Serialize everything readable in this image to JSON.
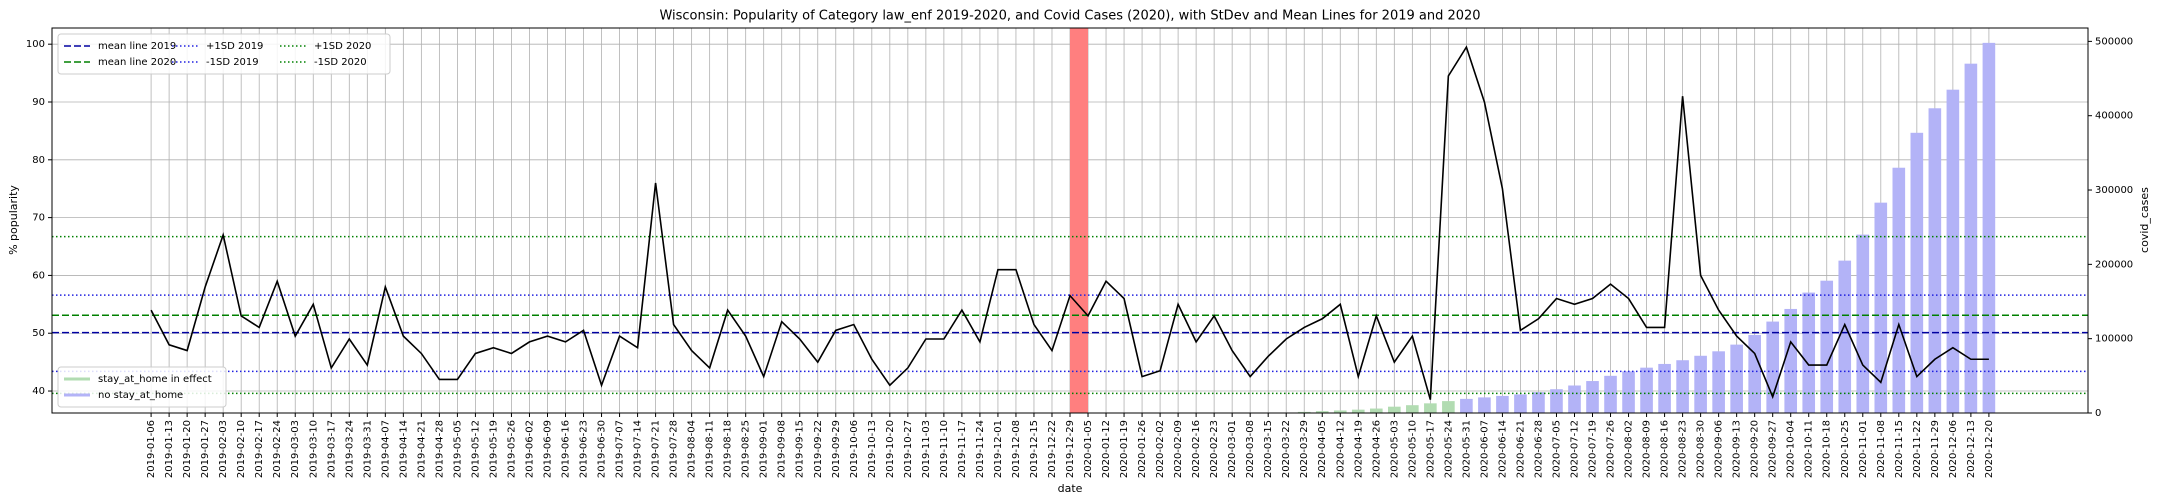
{
  "chart_data": {
    "type": "line_bar",
    "title": "Wisconsin: Popularity of Category law_enf 2019-2020, and Covid Cases (2020), with StDev and Mean Lines for 2019 and 2020",
    "xlabel": "date",
    "ylabel": "% popularity",
    "y2label": "covid_cases",
    "categories": [
      "2019-01-06",
      "2019-01-13",
      "2019-01-20",
      "2019-01-27",
      "2019-02-03",
      "2019-02-10",
      "2019-02-17",
      "2019-02-24",
      "2019-03-03",
      "2019-03-10",
      "2019-03-17",
      "2019-03-24",
      "2019-03-31",
      "2019-04-07",
      "2019-04-14",
      "2019-04-21",
      "2019-04-28",
      "2019-05-05",
      "2019-05-12",
      "2019-05-19",
      "2019-05-26",
      "2019-06-02",
      "2019-06-09",
      "2019-06-16",
      "2019-06-23",
      "2019-06-30",
      "2019-07-07",
      "2019-07-14",
      "2019-07-21",
      "2019-07-28",
      "2019-08-04",
      "2019-08-11",
      "2019-08-18",
      "2019-08-25",
      "2019-09-01",
      "2019-09-08",
      "2019-09-15",
      "2019-09-22",
      "2019-09-29",
      "2019-10-06",
      "2019-10-13",
      "2019-10-20",
      "2019-10-27",
      "2019-11-03",
      "2019-11-10",
      "2019-11-17",
      "2019-11-24",
      "2019-12-01",
      "2019-12-08",
      "2019-12-15",
      "2019-12-22",
      "2019-12-29",
      "2020-01-05",
      "2020-01-12",
      "2020-01-19",
      "2020-01-26",
      "2020-02-02",
      "2020-02-09",
      "2020-02-16",
      "2020-02-23",
      "2020-03-01",
      "2020-03-08",
      "2020-03-15",
      "2020-03-22",
      "2020-03-29",
      "2020-04-05",
      "2020-04-12",
      "2020-04-19",
      "2020-04-26",
      "2020-05-03",
      "2020-05-10",
      "2020-05-17",
      "2020-05-24",
      "2020-05-31",
      "2020-06-07",
      "2020-06-14",
      "2020-06-21",
      "2020-06-28",
      "2020-07-05",
      "2020-07-12",
      "2020-07-19",
      "2020-07-26",
      "2020-08-02",
      "2020-08-09",
      "2020-08-16",
      "2020-08-23",
      "2020-08-30",
      "2020-09-06",
      "2020-09-13",
      "2020-09-20",
      "2020-09-27",
      "2020-10-04",
      "2020-10-11",
      "2020-10-18",
      "2020-10-25",
      "2020-11-01",
      "2020-11-08",
      "2020-11-15",
      "2020-11-22",
      "2020-11-29",
      "2020-12-06",
      "2020-12-13",
      "2020-12-20"
    ],
    "series": [
      {
        "name": "popularity",
        "kind": "line",
        "color": "#000000",
        "values": [
          54,
          48,
          47,
          58,
          67,
          53,
          51,
          59,
          49.5,
          55,
          44,
          49,
          44.5,
          58,
          49.5,
          46.5,
          42,
          42,
          46.5,
          47.5,
          46.5,
          48.5,
          49.5,
          48.5,
          50.5,
          41,
          49.5,
          47.5,
          76,
          51.5,
          47,
          44,
          54,
          49.5,
          42.5,
          52,
          49,
          45,
          50.5,
          51.5,
          45.5,
          41,
          44,
          49,
          49,
          54,
          48.5,
          61,
          61,
          51.5,
          47,
          56.5,
          53,
          59,
          56,
          42.5,
          43.5,
          55,
          48.5,
          53,
          47,
          42.5,
          46,
          49,
          51,
          52.5,
          55,
          42.5,
          53,
          45,
          49.5,
          38.5,
          94.5,
          99.5,
          90,
          75,
          50.5,
          52.5,
          56,
          55,
          56,
          58.5,
          56,
          51,
          51,
          91,
          60,
          54,
          49.5,
          46.5,
          39,
          48.5,
          44.5,
          44.5,
          51.5,
          44.5,
          41.5,
          51.5,
          42.5,
          45.5,
          47.5,
          45.5,
          45.5
        ]
      },
      {
        "name": "stay_at_home in effect",
        "kind": "bar",
        "axis": "y2",
        "color": "#b2dcb2",
        "values": [
          null,
          null,
          null,
          null,
          null,
          null,
          null,
          null,
          null,
          null,
          null,
          null,
          null,
          null,
          null,
          null,
          null,
          null,
          null,
          null,
          null,
          null,
          null,
          null,
          null,
          null,
          null,
          null,
          null,
          null,
          null,
          null,
          null,
          null,
          null,
          null,
          null,
          null,
          null,
          null,
          null,
          null,
          null,
          null,
          null,
          null,
          null,
          null,
          null,
          null,
          null,
          null,
          null,
          null,
          null,
          null,
          null,
          null,
          null,
          null,
          null,
          null,
          null,
          null,
          1500,
          2500,
          3400,
          4500,
          6000,
          8500,
          10500,
          13000,
          16000,
          null,
          null,
          null,
          null,
          null,
          null,
          null,
          null,
          null,
          null,
          null,
          null,
          null,
          null,
          null,
          null,
          null,
          null,
          null,
          null,
          null,
          null,
          null,
          null,
          null,
          null,
          null,
          null,
          null,
          null
        ]
      },
      {
        "name": "no stay_at_home",
        "kind": "bar",
        "axis": "y2",
        "color": "#b3b3f7",
        "values": [
          null,
          null,
          null,
          null,
          null,
          null,
          null,
          null,
          null,
          null,
          null,
          null,
          null,
          null,
          null,
          null,
          null,
          null,
          null,
          null,
          null,
          null,
          null,
          null,
          null,
          null,
          null,
          null,
          null,
          null,
          null,
          null,
          null,
          null,
          null,
          null,
          null,
          null,
          null,
          null,
          null,
          null,
          null,
          null,
          null,
          null,
          null,
          null,
          null,
          null,
          null,
          null,
          null,
          null,
          null,
          null,
          null,
          null,
          null,
          null,
          null,
          null,
          null,
          null,
          null,
          null,
          null,
          null,
          null,
          null,
          null,
          null,
          null,
          19000,
          21000,
          23000,
          25000,
          28000,
          32000,
          37000,
          43000,
          50000,
          56000,
          61000,
          66000,
          71000,
          77000,
          83000,
          92000,
          105000,
          123000,
          140000,
          162000,
          178000,
          205000,
          240000,
          283000,
          330000,
          377000,
          410000,
          435000,
          470000,
          498000
        ]
      }
    ],
    "reference_lines": [
      {
        "name": "mean line 2019",
        "value": 50.1,
        "color": "#0000a0",
        "style": "dashed"
      },
      {
        "name": "mean line 2020",
        "value": 53.1,
        "color": "#008000",
        "style": "dashed"
      },
      {
        "name": "+1SD 2019",
        "value": 56.6,
        "color": "#2020e0",
        "style": "dotted"
      },
      {
        "name": "-1SD 2019",
        "value": 43.4,
        "color": "#2020e0",
        "style": "dotted"
      },
      {
        "name": "+1SD 2020",
        "value": 66.7,
        "color": "#008000",
        "style": "dotted"
      },
      {
        "name": "-1SD 2020",
        "value": 39.6,
        "color": "#008000",
        "style": "dotted"
      }
    ],
    "highlight_span": {
      "from": "2019-12-29",
      "to": "2020-01-05",
      "color": "#ff7f7f"
    },
    "ylim": [
      36.2,
      102.8
    ],
    "yticks": [
      40,
      50,
      60,
      70,
      80,
      90,
      100
    ],
    "y2lim": [
      0,
      518000
    ],
    "y2ticks": [
      0,
      100000,
      200000,
      300000,
      400000,
      500000
    ],
    "grid": true,
    "reference_legend": "upper left",
    "bar_legend": "lower left"
  }
}
